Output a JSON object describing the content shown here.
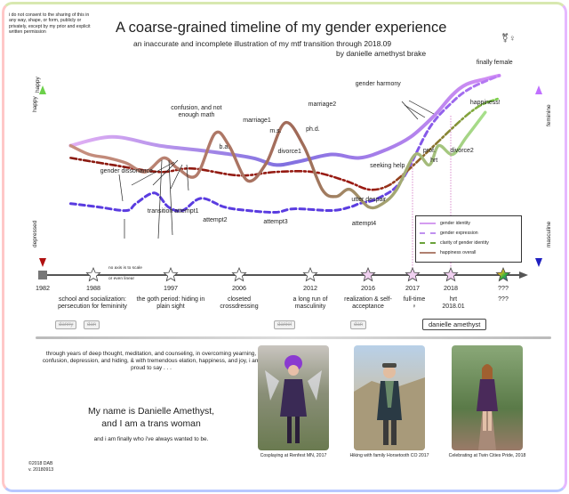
{
  "consent_notice": "i do not consent to the sharing of this in any way, shape, or form, publicly or privately, except by my prior and explicit written permission",
  "header": {
    "title": "A coarse-grained timeline of my gender experience",
    "subtitle": "an inaccurate and incomplete illustration of my mtf transition through 2018.09",
    "byline": "by danielle amethyst brake"
  },
  "colors": {
    "gender_identity": "#d49cf0",
    "gender_expression": "#5a3ce0",
    "clarity": "#9a1a12",
    "clarity_end": "#7ad04a",
    "happiness": "#b08070",
    "happiness_end": "#a6e08a"
  },
  "chart_data": {
    "type": "line",
    "x_years": [
      1982,
      1988,
      1997,
      2006,
      2012,
      2016,
      2017,
      2018,
      "???"
    ],
    "axis_notes": [
      "no axis is to scale",
      "or even linear"
    ],
    "left_axis": {
      "top": "happy",
      "bottom": "depressed"
    },
    "right_axis": {
      "top": "feminine",
      "bottom": "masculine"
    },
    "legend": [
      "gender identity",
      "gender expression",
      "clarity of gender identity",
      "happiness overall"
    ],
    "legend_position": "right",
    "series_note": "values are qualitative (0 = bottom of axis, 1 = top of axis), read off the curves; x is the position along the timeline from 1982 (0) to ??? (1)",
    "series": [
      {
        "name": "gender identity",
        "style": "solid",
        "x": [
          0.06,
          0.15,
          0.25,
          0.35,
          0.45,
          0.5,
          0.55,
          0.62,
          0.68,
          0.74,
          0.79,
          0.84,
          0.88,
          0.91,
          0.95,
          0.98
        ],
        "values": [
          0.55,
          0.6,
          0.55,
          0.52,
          0.48,
          0.44,
          0.46,
          0.5,
          0.48,
          0.53,
          0.6,
          0.72,
          0.84,
          0.9,
          0.93,
          0.95
        ]
      },
      {
        "name": "gender expression",
        "style": "dashed",
        "x": [
          0.06,
          0.12,
          0.18,
          0.2,
          0.24,
          0.27,
          0.3,
          0.34,
          0.39,
          0.44,
          0.5,
          0.54,
          0.62,
          0.66,
          0.68,
          0.72,
          0.77,
          0.83,
          0.88,
          0.92,
          0.98
        ],
        "values": [
          0.22,
          0.2,
          0.18,
          0.22,
          0.28,
          0.2,
          0.18,
          0.25,
          0.2,
          0.18,
          0.17,
          0.19,
          0.18,
          0.2,
          0.22,
          0.25,
          0.35,
          0.65,
          0.8,
          0.88,
          0.95
        ]
      },
      {
        "name": "clarity of gender identity",
        "style": "dash-dot",
        "x": [
          0.06,
          0.15,
          0.25,
          0.32,
          0.42,
          0.5,
          0.58,
          0.65,
          0.7,
          0.74,
          0.78,
          0.84,
          0.9,
          0.94,
          0.98
        ],
        "values": [
          0.48,
          0.44,
          0.4,
          0.42,
          0.38,
          0.4,
          0.4,
          0.35,
          0.3,
          0.32,
          0.4,
          0.55,
          0.7,
          0.78,
          0.82
        ]
      },
      {
        "name": "happiness overall",
        "style": "solid",
        "x": [
          0.06,
          0.1,
          0.14,
          0.18,
          0.22,
          0.26,
          0.29,
          0.33,
          0.37,
          0.4,
          0.44,
          0.48,
          0.52,
          0.56,
          0.6,
          0.63,
          0.66,
          0.7,
          0.73,
          0.76,
          0.8,
          0.83,
          0.85,
          0.88,
          0.91,
          0.95
        ],
        "values": [
          0.55,
          0.5,
          0.48,
          0.45,
          0.4,
          0.48,
          0.42,
          0.38,
          0.62,
          0.55,
          0.35,
          0.45,
          0.68,
          0.55,
          0.3,
          0.26,
          0.3,
          0.2,
          0.22,
          0.3,
          0.5,
          0.44,
          0.55,
          0.5,
          0.6,
          0.74
        ]
      }
    ],
    "top_labels": [
      {
        "text": "confusion, and not enough math",
        "x": 0.33,
        "y": 0.74
      },
      {
        "text": "gender dissonance",
        "x": 0.18,
        "y": 0.38
      },
      {
        "text": "b.a.",
        "x": 0.39,
        "y": 0.52
      },
      {
        "text": "marriage1",
        "x": 0.46,
        "y": 0.67
      },
      {
        "text": "m.s.",
        "x": 0.5,
        "y": 0.61
      },
      {
        "text": "divorce1",
        "x": 0.53,
        "y": 0.49
      },
      {
        "text": "ph.d.",
        "x": 0.58,
        "y": 0.62
      },
      {
        "text": "marriage2",
        "x": 0.6,
        "y": 0.76
      },
      {
        "text": "utter despair",
        "x": 0.7,
        "y": 0.22
      },
      {
        "text": "seeking help",
        "x": 0.74,
        "y": 0.41
      },
      {
        "text": "gender harmony",
        "x": 0.72,
        "y": 0.88
      },
      {
        "text": "prof.",
        "x": 0.83,
        "y": 0.5
      },
      {
        "text": "hrt",
        "x": 0.84,
        "y": 0.44
      },
      {
        "text": "divorce2",
        "x": 0.9,
        "y": 0.5
      },
      {
        "text": "happiness!",
        "x": 0.95,
        "y": 0.77
      },
      {
        "text": "finally female",
        "x": 0.97,
        "y": 1.0
      },
      {
        "text": "transition attempt1",
        "x": 0.28,
        "y": 0.15
      },
      {
        "text": "attempt2",
        "x": 0.37,
        "y": 0.1
      },
      {
        "text": "attempt3",
        "x": 0.5,
        "y": 0.09
      },
      {
        "text": "attempt4",
        "x": 0.69,
        "y": 0.08
      }
    ],
    "periods": [
      {
        "text": "school and socialization: persecution for femininity"
      },
      {
        "text": "the goth period: hiding in plain sight"
      },
      {
        "text": "closeted crossdressing"
      },
      {
        "text": "a long run of masculinity"
      },
      {
        "text": "realization & self-acceptance"
      },
      {
        "text": "full-time ♀"
      },
      {
        "text": "hrt 2018.01"
      },
      {
        "text": "???"
      }
    ],
    "old_names": [
      "danny",
      "dan",
      "daniel",
      "dan"
    ],
    "current_name": "danielle amethyst"
  },
  "statement": {
    "intro": "through years of deep thought, meditation, and counseling, in overcoming yearning, confusion, depression, and hiding, & with tremendous elation, happiness, and joy, i am proud to say . . .",
    "line1": "My name is Danielle Amethyst,",
    "line2": "and I am a trans woman",
    "outro": "and i am finally who i've always wanted to be."
  },
  "photos": [
    {
      "caption": "Cosplaying at Renfest MN, 2017"
    },
    {
      "caption": "Hiking with family Horsetooth CO 2017"
    },
    {
      "caption": "Celebrating at Twin Cities Pride, 2018"
    }
  ],
  "gender_symbols": "⚧♀",
  "copyright": "©2018 DAB",
  "version": "v. 20180913"
}
